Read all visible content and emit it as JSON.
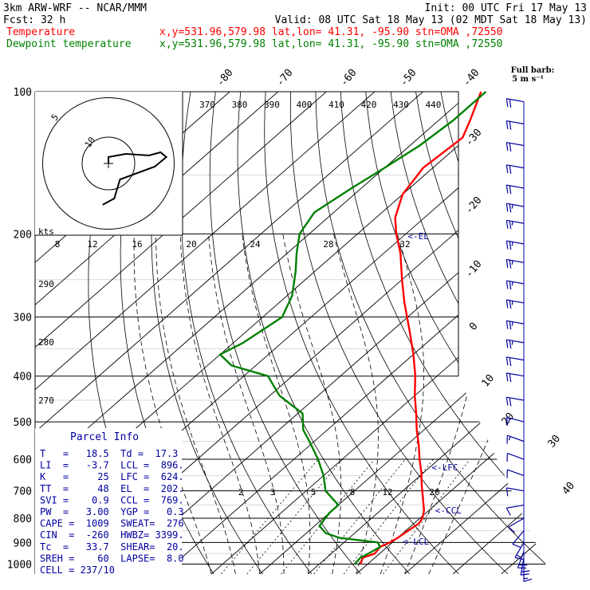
{
  "header": {
    "model": "3km ARW-WRF -- NCAR/MMM",
    "init": "Init: 00 UTC Fri 17 May 13",
    "fcst": "Fcst:    32 h",
    "valid": "Valid: 08 UTC Sat 18 May 13 (02 MDT Sat 18 May 13)"
  },
  "legend": [
    {
      "label": "Temperature",
      "location": "x,y=531.96,579.98   lat,lon= 41.31, -95.90   stn=OMA ,72550",
      "color": "#ff0000"
    },
    {
      "label": "Dewpoint temperature",
      "location": "x,y=531.96,579.98   lat,lon= 41.31, -95.90   stn=OMA ,72550",
      "color": "#008000"
    }
  ],
  "barb_legend": {
    "line1": "Full barb:",
    "line2": "5 m s⁻¹"
  },
  "parcel_info": {
    "title": "Parcel Info",
    "rows": [
      "T   =   18.5  Td =  17.3",
      "LI  =   -3.7  LCL =  896.",
      "K   =     25  LFC =  624.",
      "TT  =     48  EL  =  202.",
      "SVI =    0.9  CCL =  769.",
      "PW  =   3.00  YGP =   0.3",
      "CAPE =  1009  SWEAT=  276",
      "CIN  =  -260  HWBZ= 3399.",
      "Tc  =   33.7  SHEAR=  20.",
      "SREH =    60  LAPSE=  8.0",
      "CELL = 237/10"
    ]
  },
  "chart_data": {
    "type": "line",
    "chart_kind": "skew-T log-P",
    "y_axis": {
      "label": "",
      "scale": "log",
      "ticks": [
        "100",
        "200",
        "300",
        "400",
        "500",
        "600",
        "700",
        "800",
        "900",
        "1000"
      ]
    },
    "isotherm_labels": [
      "-80",
      "-70",
      "-60",
      "-50",
      "-40",
      "-30",
      "-20",
      "-10",
      "0",
      "10",
      "20",
      "30",
      "40"
    ],
    "theta_labels_top": [
      "370",
      "380",
      "390",
      "400",
      "410",
      "420",
      "430",
      "440"
    ],
    "theta_labels_left": [
      "290",
      "280",
      "270"
    ],
    "mixing_ratio_labels": [
      "2",
      "3",
      "5",
      "8",
      "12",
      "20"
    ],
    "hodograph": {
      "units": "kts",
      "ring_labels": [
        "5",
        "10"
      ],
      "speed_labels": [
        "8",
        "12",
        "16",
        "20",
        "24",
        "28",
        "32"
      ],
      "points": [
        [
          0,
          0
        ],
        [
          0,
          2
        ],
        [
          3,
          3
        ],
        [
          7,
          2.5
        ],
        [
          9,
          3.5
        ],
        [
          10,
          2
        ],
        [
          8,
          -1
        ],
        [
          2,
          -5
        ],
        [
          1,
          -11
        ],
        [
          -1,
          -13
        ]
      ]
    },
    "markers": [
      {
        "label": "EL",
        "p": 202
      },
      {
        "label": "LFC",
        "p": 624
      },
      {
        "label": "CCL",
        "p": 769
      },
      {
        "label": "LCL",
        "p": 896
      }
    ],
    "series": [
      {
        "name": "Temperature",
        "color": "#ff0000",
        "points": [
          [
            1000,
            18.5
          ],
          [
            970,
            17.5
          ],
          [
            950,
            19.0
          ],
          [
            920,
            18.5
          ],
          [
            900,
            19.5
          ],
          [
            880,
            20.0
          ],
          [
            850,
            20.5
          ],
          [
            820,
            21.0
          ],
          [
            800,
            20.5
          ],
          [
            770,
            19.0
          ],
          [
            720,
            15.5
          ],
          [
            680,
            12.5
          ],
          [
            640,
            9.5
          ],
          [
            600,
            6.0
          ],
          [
            560,
            2.5
          ],
          [
            520,
            -1.5
          ],
          [
            480,
            -5.5
          ],
          [
            440,
            -10.0
          ],
          [
            400,
            -14.5
          ],
          [
            360,
            -20.0
          ],
          [
            320,
            -26.5
          ],
          [
            280,
            -34.0
          ],
          [
            250,
            -40.0
          ],
          [
            220,
            -46.5
          ],
          [
            200,
            -52.0
          ],
          [
            185,
            -56.0
          ],
          [
            165,
            -60.0
          ],
          [
            145,
            -62.0
          ],
          [
            135,
            -61.5
          ],
          [
            125,
            -61.0
          ],
          [
            115,
            -63.5
          ],
          [
            100,
            -68.0
          ]
        ]
      },
      {
        "name": "Dewpoint temperature",
        "color": "#008000",
        "points": [
          [
            1000,
            17.3
          ],
          [
            970,
            17.0
          ],
          [
            940,
            18.0
          ],
          [
            920,
            18.5
          ],
          [
            900,
            17.0
          ],
          [
            880,
            8.0
          ],
          [
            860,
            4.0
          ],
          [
            830,
            1.0
          ],
          [
            780,
            0.0
          ],
          [
            750,
            0.0
          ],
          [
            700,
            -6.0
          ],
          [
            650,
            -10.0
          ],
          [
            600,
            -15.0
          ],
          [
            550,
            -21.0
          ],
          [
            520,
            -25.0
          ],
          [
            480,
            -29.0
          ],
          [
            440,
            -38.0
          ],
          [
            400,
            -45.0
          ],
          [
            380,
            -55.0
          ],
          [
            360,
            -60.0
          ],
          [
            340,
            -58.0
          ],
          [
            300,
            -56.0
          ],
          [
            270,
            -59.0
          ],
          [
            240,
            -64.0
          ],
          [
            220,
            -68.0
          ],
          [
            200,
            -72.0
          ],
          [
            180,
            -74.0
          ],
          [
            160,
            -72.0
          ],
          [
            145,
            -70.0
          ],
          [
            130,
            -68.0
          ],
          [
            115,
            -67.0
          ],
          [
            100,
            -67.0
          ]
        ]
      }
    ],
    "wind_profile": [
      {
        "p": 1000,
        "dir": 180,
        "spd": 15
      },
      {
        "p": 970,
        "dir": 190,
        "spd": 20
      },
      {
        "p": 940,
        "dir": 200,
        "spd": 20
      },
      {
        "p": 900,
        "dir": 210,
        "spd": 15
      },
      {
        "p": 850,
        "dir": 220,
        "spd": 10
      },
      {
        "p": 800,
        "dir": 240,
        "spd": 10
      },
      {
        "p": 750,
        "dir": 260,
        "spd": 10
      },
      {
        "p": 700,
        "dir": 280,
        "spd": 10
      },
      {
        "p": 650,
        "dir": 290,
        "spd": 10
      },
      {
        "p": 600,
        "dir": 290,
        "spd": 10
      },
      {
        "p": 550,
        "dir": 290,
        "spd": 15
      },
      {
        "p": 500,
        "dir": 285,
        "spd": 15
      },
      {
        "p": 450,
        "dir": 280,
        "spd": 20
      },
      {
        "p": 400,
        "dir": 280,
        "spd": 20
      },
      {
        "p": 370,
        "dir": 280,
        "spd": 20
      },
      {
        "p": 340,
        "dir": 280,
        "spd": 25
      },
      {
        "p": 310,
        "dir": 280,
        "spd": 25
      },
      {
        "p": 280,
        "dir": 280,
        "spd": 25
      },
      {
        "p": 255,
        "dir": 280,
        "spd": 25
      },
      {
        "p": 230,
        "dir": 280,
        "spd": 25
      },
      {
        "p": 210,
        "dir": 280,
        "spd": 25
      },
      {
        "p": 190,
        "dir": 280,
        "spd": 25
      },
      {
        "p": 175,
        "dir": 280,
        "spd": 25
      },
      {
        "p": 160,
        "dir": 280,
        "spd": 20
      },
      {
        "p": 145,
        "dir": 280,
        "spd": 20
      },
      {
        "p": 130,
        "dir": 280,
        "spd": 20
      },
      {
        "p": 117,
        "dir": 280,
        "spd": 20
      },
      {
        "p": 105,
        "dir": 280,
        "spd": 20
      }
    ]
  }
}
